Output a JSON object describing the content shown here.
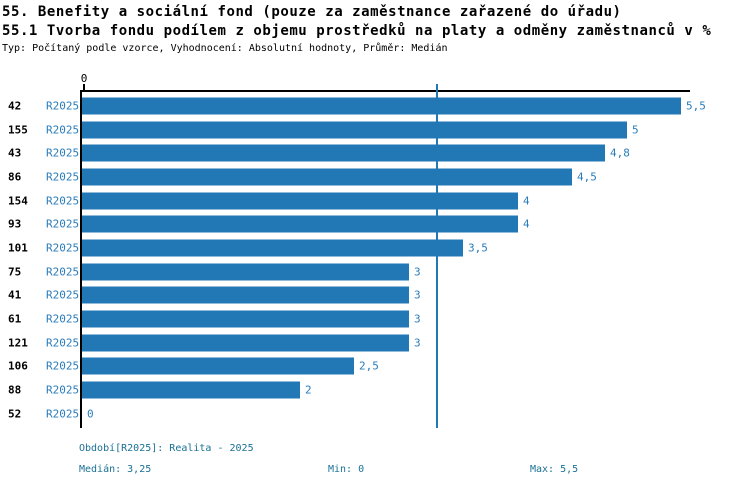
{
  "title_line1": "55. Benefity a sociální fond (pouze za zaměstnance zařazené do úřadu)",
  "title_line2": "55.1 Tvorba fondu podílem z objemu prostředků na platy a odměny zaměstnanců v %",
  "meta_line": "Typ: Počítaný podle vzorce, Vyhodnocení: Absolutní hodnoty, Průměr: Medián",
  "colors": {
    "bar": "#2277b5",
    "blue_text": "#2a7cba",
    "footer_text": "#1a7195",
    "median_line": "#2277b5",
    "axis": "#000000"
  },
  "chart_data": {
    "type": "bar",
    "orientation": "horizontal",
    "title": "55.1 Tvorba fondu podílem z objemu prostředků na platy a odměny zaměstnanců v %",
    "xlabel": "",
    "ylabel": "",
    "xlim": [
      0,
      5.5
    ],
    "zero_tick_label": "0",
    "median_line_value": 3.25,
    "grid": false,
    "series_name": "R2025",
    "rows": [
      {
        "id": "42",
        "period": "R2025",
        "value": 5.5,
        "value_label": "5,5"
      },
      {
        "id": "155",
        "period": "R2025",
        "value": 5.0,
        "value_label": "5"
      },
      {
        "id": "43",
        "period": "R2025",
        "value": 4.8,
        "value_label": "4,8"
      },
      {
        "id": "86",
        "period": "R2025",
        "value": 4.5,
        "value_label": "4,5"
      },
      {
        "id": "154",
        "period": "R2025",
        "value": 4.0,
        "value_label": "4"
      },
      {
        "id": "93",
        "period": "R2025",
        "value": 4.0,
        "value_label": "4"
      },
      {
        "id": "101",
        "period": "R2025",
        "value": 3.5,
        "value_label": "3,5"
      },
      {
        "id": "75",
        "period": "R2025",
        "value": 3.0,
        "value_label": "3"
      },
      {
        "id": "41",
        "period": "R2025",
        "value": 3.0,
        "value_label": "3"
      },
      {
        "id": "61",
        "period": "R2025",
        "value": 3.0,
        "value_label": "3"
      },
      {
        "id": "121",
        "period": "R2025",
        "value": 3.0,
        "value_label": "3"
      },
      {
        "id": "106",
        "period": "R2025",
        "value": 2.5,
        "value_label": "2,5"
      },
      {
        "id": "88",
        "period": "R2025",
        "value": 2.0,
        "value_label": "2"
      },
      {
        "id": "52",
        "period": "R2025",
        "value": 0.0,
        "value_label": "0"
      }
    ]
  },
  "footer": {
    "period_legend": "Období[R2025]: Realita - 2025",
    "median_label": "Medián: 3,25",
    "min_label": "Min: 0",
    "max_label": "Max: 5,5"
  }
}
